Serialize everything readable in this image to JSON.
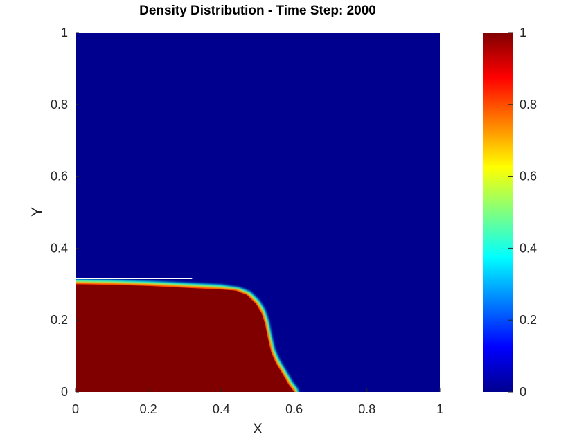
{
  "chart_data": {
    "type": "heatmap",
    "title": "Density Distribution - Time Step: 2000",
    "xlabel": "X",
    "ylabel": "Y",
    "xlim": [
      0,
      1
    ],
    "ylim": [
      0,
      1
    ],
    "x_ticks": [
      "0",
      "0.2",
      "0.4",
      "0.6",
      "0.8",
      "1"
    ],
    "y_ticks": [
      "0",
      "0.2",
      "0.4",
      "0.6",
      "0.8",
      "1"
    ],
    "colorbar": {
      "colormap": "jet",
      "range": [
        0,
        1
      ],
      "ticks": [
        "0",
        "0.2",
        "0.4",
        "0.6",
        "0.8",
        "1"
      ]
    },
    "field": {
      "description_value": "density",
      "background_value": 0,
      "region_value": 1,
      "region_boundary": [
        {
          "x": 0.0,
          "y": 0.3
        },
        {
          "x": 0.1,
          "y": 0.298
        },
        {
          "x": 0.2,
          "y": 0.295
        },
        {
          "x": 0.3,
          "y": 0.29
        },
        {
          "x": 0.4,
          "y": 0.285
        },
        {
          "x": 0.44,
          "y": 0.282
        },
        {
          "x": 0.47,
          "y": 0.27
        },
        {
          "x": 0.495,
          "y": 0.245
        },
        {
          "x": 0.51,
          "y": 0.22
        },
        {
          "x": 0.52,
          "y": 0.19
        },
        {
          "x": 0.528,
          "y": 0.15
        },
        {
          "x": 0.537,
          "y": 0.11
        },
        {
          "x": 0.55,
          "y": 0.08
        },
        {
          "x": 0.568,
          "y": 0.05
        },
        {
          "x": 0.585,
          "y": 0.02
        },
        {
          "x": 0.6,
          "y": 0.0
        }
      ],
      "stray_line": {
        "x_start": 0.0,
        "x_end": 0.32,
        "y": 0.315
      }
    }
  }
}
